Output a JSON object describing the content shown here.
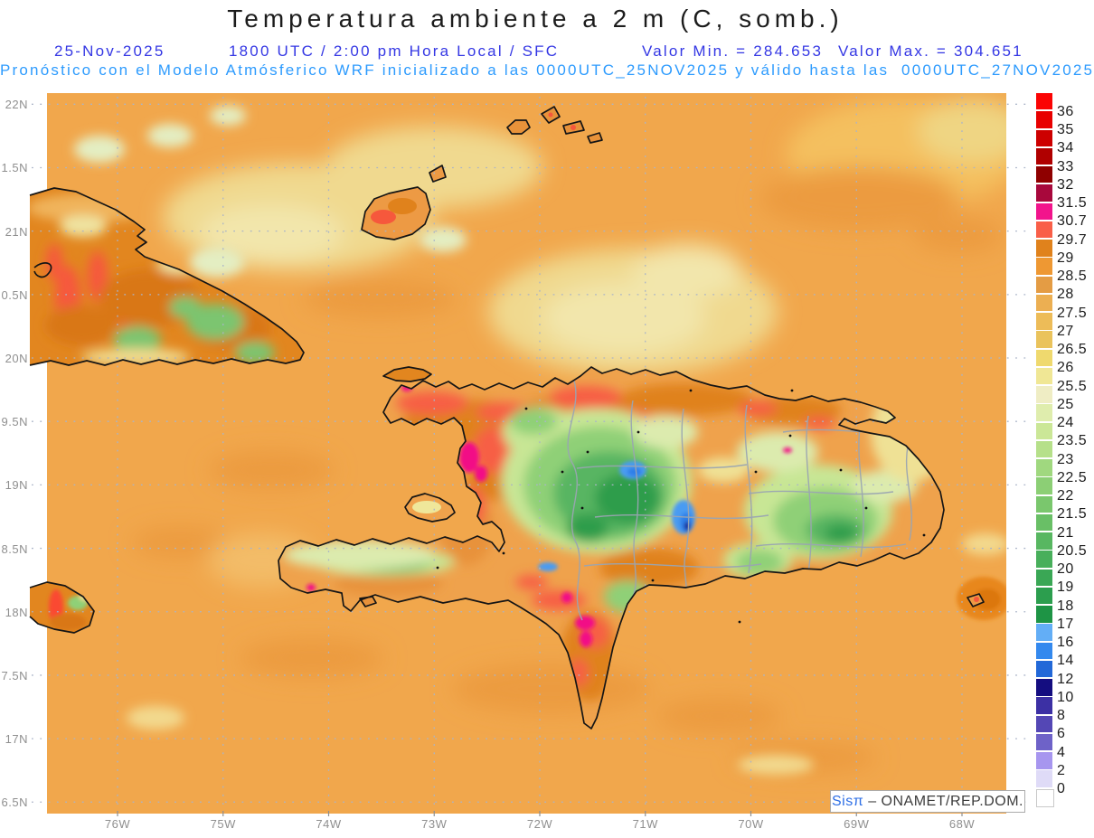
{
  "title": "Temperatura ambiente a 2 m (C, somb.)",
  "header": {
    "date": "25-Nov-2025",
    "run_info": "1800 UTC / 2:00 pm Hora Local / SFC",
    "min_label": "Valor Min. =",
    "min_value": "284.653",
    "max_label": "Valor Max. =",
    "max_value": "304.651",
    "forecast_line": "Pronóstico con el Modelo Atmósferico WRF inicializado a las 0000UTC_25NOV2025 y válido hasta las  0000UTC_27NOV2025",
    "line1_color": "#3437e4",
    "line2_color": "#2d9bfe"
  },
  "axes": {
    "y_labels": [
      "22N",
      "1.5N",
      "21N",
      "0.5N",
      "20N",
      "9.5N",
      "19N",
      "8.5N",
      "18N",
      "7.5N",
      "17N",
      "6.5N"
    ],
    "x_labels": [
      "76W",
      "75W",
      "74W",
      "73W",
      "72W",
      "71W",
      "70W",
      "69W",
      "68W"
    ]
  },
  "colorbar": {
    "labels": [
      "36",
      "35",
      "34",
      "33",
      "32",
      "31.5",
      "30.7",
      "29.7",
      "29",
      "28.5",
      "28",
      "27.5",
      "27",
      "26.5",
      "26",
      "25.5",
      "25",
      "24",
      "23.5",
      "23",
      "22.5",
      "22",
      "21.5",
      "21",
      "20.5",
      "20",
      "19",
      "18",
      "17",
      "16",
      "14",
      "12",
      "10",
      "8",
      "6",
      "4",
      "2",
      "0"
    ],
    "colors": [
      "#fb0404",
      "#e80000",
      "#cd0000",
      "#b00000",
      "#8f0000",
      "#a8083c",
      "#f2148c",
      "#f95f48",
      "#e0821c",
      "#ee9833",
      "#e49c44",
      "#ecaf52",
      "#edbc58",
      "#eac35c",
      "#efd96e",
      "#f0e795",
      "#efedc4",
      "#dfedad",
      "#cbe797",
      "#b6e08a",
      "#a0d87f",
      "#8ccf75",
      "#7ac76d",
      "#69bf66",
      "#58b761",
      "#48af5b",
      "#3aa755",
      "#2c9e4e",
      "#1e9445",
      "#63aef6",
      "#3489ee",
      "#2268d8",
      "#140d80",
      "#3c30a4",
      "#5447b5",
      "#6e62c8",
      "#a796ef",
      "#dfdbf7",
      "#ffffff"
    ]
  },
  "attribution": {
    "brand": "Sisπ",
    "separator": " – ",
    "org": "ONAMET/REP.DOM."
  },
  "map_colors": {
    "sea": "#f1a74c",
    "grid": "#aab4c8",
    "coastline": "#151515",
    "admin_boundary": "#9aa5b2",
    "hot_spot_magenta": "#f20f86",
    "mountain_green": "#2f9d4b",
    "peak_blue": "#2e7fe8"
  }
}
